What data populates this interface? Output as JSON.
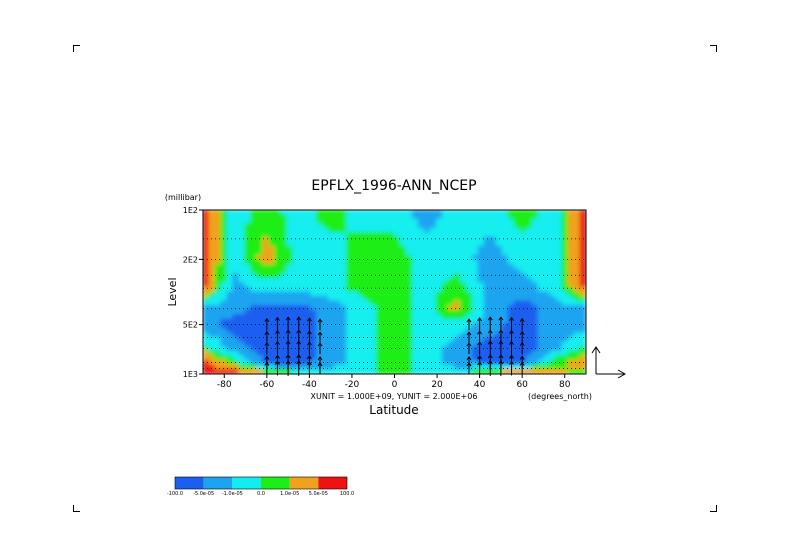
{
  "chart_data": {
    "type": "heatmap",
    "title": "EPFLX_1996-ANN_NCEP",
    "xlabel": "Latitude",
    "ylabel": "Level",
    "y_units": "(millibar)",
    "x_units": "(degrees_north)",
    "vector_scale": "XUNIT = 1.000E+09, YUNIT = 2.000E+06",
    "xlim": [
      -90,
      90
    ],
    "ylim": [
      1000,
      100
    ],
    "y_scale": "log",
    "x_ticks": [
      -80,
      -60,
      -40,
      -20,
      0,
      20,
      40,
      60,
      80
    ],
    "x_tick_labels": [
      "-80",
      "-60",
      "-40",
      "-20",
      "0",
      "20",
      "40",
      "60",
      "80"
    ],
    "y_ticks": [
      100,
      200,
      500,
      1000
    ],
    "y_tick_labels": [
      "1E2",
      "2E2",
      "5E2",
      "1E3"
    ],
    "pressure_levels": [
      100,
      150,
      200,
      250,
      300,
      400,
      500,
      600,
      700,
      850,
      925
    ],
    "colorbar": {
      "labels": [
        "-100.0",
        "-5.0e-05",
        "-1.0e-05",
        "0.0",
        "1.0e-05",
        "5.0e-05",
        "100.0"
      ],
      "colors": [
        "#1c5ff0",
        "#1ca4f0",
        "#12eef0",
        "#1cee18",
        "#f0a21c",
        "#ee1212"
      ]
    },
    "field_grid": {
      "lats": [
        -90,
        -75,
        -60,
        -45,
        -30,
        -15,
        0,
        15,
        30,
        45,
        60,
        75,
        90
      ],
      "levels": [
        100,
        200,
        300,
        400,
        500,
        700,
        850,
        1000
      ],
      "class_index": [
        [
          5,
          2,
          3,
          2,
          3,
          2,
          2,
          1,
          2,
          2,
          3,
          2,
          5
        ],
        [
          5,
          2,
          4,
          2,
          2,
          3,
          3,
          2,
          2,
          1,
          2,
          2,
          5
        ],
        [
          5,
          1,
          2,
          2,
          2,
          3,
          3,
          2,
          3,
          1,
          1,
          2,
          5
        ],
        [
          1,
          1,
          0,
          0,
          1,
          2,
          3,
          2,
          4,
          1,
          0,
          1,
          1
        ],
        [
          1,
          0,
          0,
          0,
          1,
          2,
          3,
          2,
          2,
          1,
          0,
          1,
          1
        ],
        [
          3,
          1,
          0,
          0,
          1,
          2,
          3,
          2,
          1,
          0,
          0,
          1,
          3
        ],
        [
          5,
          3,
          0,
          0,
          1,
          2,
          3,
          2,
          1,
          0,
          0,
          3,
          4
        ],
        [
          5,
          5,
          4,
          3,
          2,
          2,
          3,
          2,
          2,
          4,
          5,
          4,
          3
        ]
      ]
    },
    "vectors": {
      "lats": [
        -60,
        -55,
        -50,
        -45,
        -40,
        -35,
        35,
        40,
        45,
        50,
        55,
        60
      ],
      "vertical_component": [
        0.6,
        0.8,
        0.9,
        0.9,
        0.7,
        0.5,
        0.5,
        0.7,
        0.9,
        0.9,
        0.8,
        0.6
      ]
    },
    "grid": true
  }
}
